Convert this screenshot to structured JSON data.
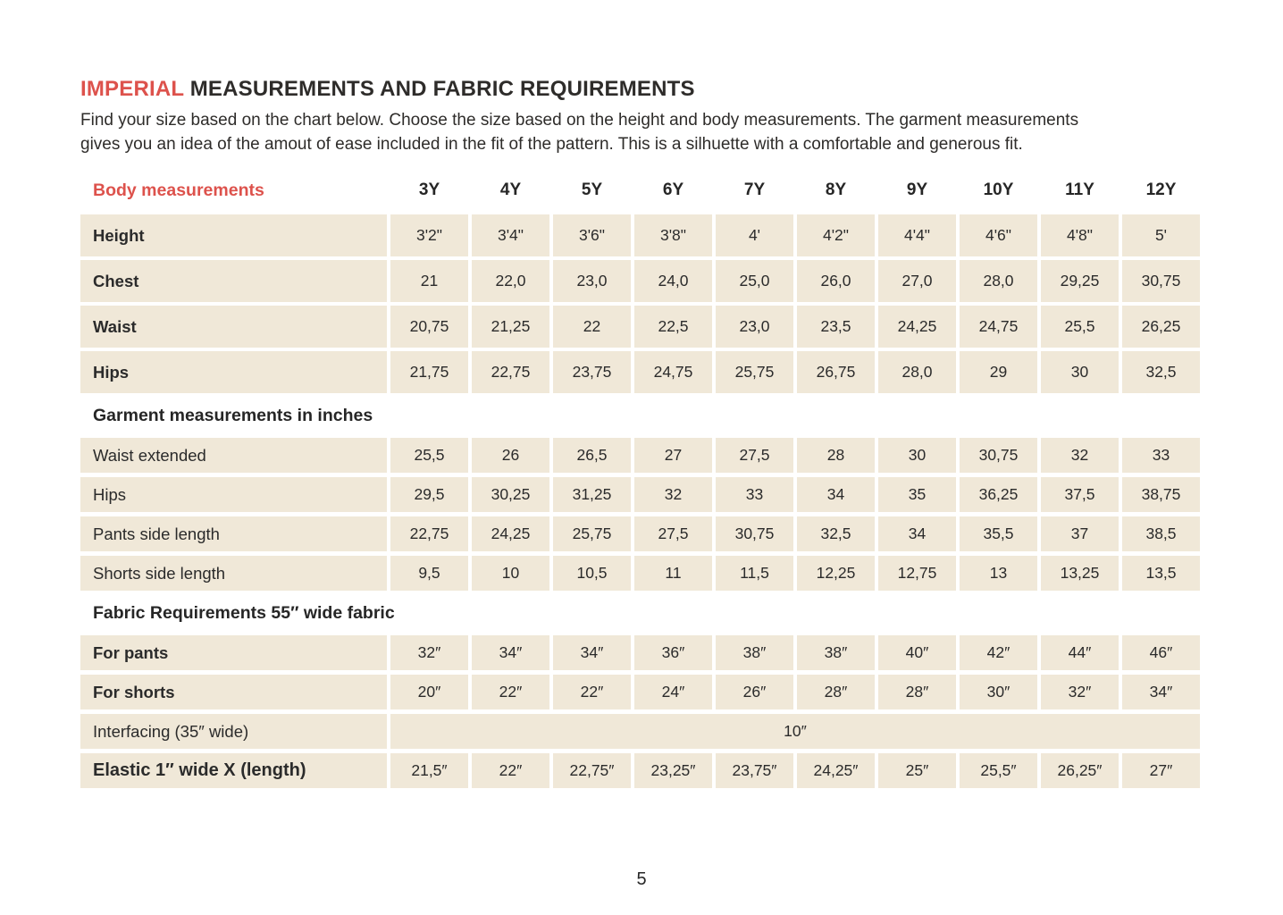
{
  "header": {
    "title_accent": "IMPERIAL",
    "title_rest": " MEASUREMENTS AND FABRIC REQUIREMENTS",
    "intro_line1": "Find your size based on the chart below. Choose the size based on the height and body measurements. The garment measurements",
    "intro_line2": "gives you an idea of the amout of ease included in the fit of the pattern. This is a silhuette with a comfortable and generous fit."
  },
  "colors": {
    "accent_red": "#dd524c",
    "cell_background": "#f0e8d8",
    "text": "#2b2b2b"
  },
  "table": {
    "header_row": {
      "label": "Body measurements",
      "sizes": [
        "3Y",
        "4Y",
        "5Y",
        "6Y",
        "7Y",
        "8Y",
        "9Y",
        "10Y",
        "11Y",
        "12Y"
      ]
    },
    "sections": [
      {
        "rows": [
          {
            "label": "Height",
            "bold": true,
            "values": [
              "3'2\"",
              "3'4\"",
              "3'6\"",
              "3'8\"",
              "4'",
              "4'2\"",
              "4'4\"",
              "4'6\"",
              "4'8\"",
              "5'"
            ]
          },
          {
            "label": "Chest",
            "bold": true,
            "values": [
              "21",
              "22,0",
              "23,0",
              "24,0",
              "25,0",
              "26,0",
              "27,0",
              "28,0",
              "29,25",
              "30,75"
            ]
          },
          {
            "label": "Waist",
            "bold": true,
            "values": [
              "20,75",
              "21,25",
              "22",
              "22,5",
              "23,0",
              "23,5",
              "24,25",
              "24,75",
              "25,5",
              "26,25"
            ]
          },
          {
            "label": "Hips",
            "bold": true,
            "values": [
              "21,75",
              "22,75",
              "23,75",
              "24,75",
              "25,75",
              "26,75",
              "28,0",
              "29",
              "30",
              "32,5"
            ]
          }
        ]
      },
      {
        "title": "Garment measurements in inches",
        "rows": [
          {
            "label": "Waist extended",
            "bold": false,
            "values": [
              "25,5",
              "26",
              "26,5",
              "27",
              "27,5",
              "28",
              "30",
              "30,75",
              "32",
              "33"
            ]
          },
          {
            "label": "Hips",
            "bold": false,
            "values": [
              "29,5",
              "30,25",
              "31,25",
              "32",
              "33",
              "34",
              "35",
              "36,25",
              "37,5",
              "38,75"
            ]
          },
          {
            "label": "Pants side length",
            "bold": false,
            "values": [
              "22,75",
              "24,25",
              "25,75",
              "27,5",
              "30,75",
              "32,5",
              "34",
              "35,5",
              "37",
              "38,5"
            ]
          },
          {
            "label": "Shorts side length",
            "bold": false,
            "values": [
              "9,5",
              "10",
              "10,5",
              "11",
              "11,5",
              "12,25",
              "12,75",
              "13",
              "13,25",
              "13,5"
            ]
          }
        ]
      },
      {
        "title": "Fabric Requirements 55″ wide fabric",
        "rows": [
          {
            "label": "For pants",
            "bold": true,
            "values": [
              "32″",
              "34″",
              "34″",
              "36″",
              "38″",
              "38″",
              "40″",
              "42″",
              "44″",
              "46″"
            ]
          },
          {
            "label": "For shorts",
            "bold": true,
            "values": [
              "20″",
              "22″",
              "22″",
              "24″",
              "26″",
              "28″",
              "28″",
              "30″",
              "32″",
              "34″"
            ]
          },
          {
            "label": "Interfacing (35″ wide)",
            "bold": false,
            "merged_value": "10″"
          },
          {
            "label": "Elastic 1″ wide X (length)",
            "bold": true,
            "big": true,
            "values": [
              "21,5″",
              "22″",
              "22,75″",
              "23,25″",
              "23,75″",
              "24,25″",
              "25″",
              "25,5″",
              "26,25″",
              "27″"
            ]
          }
        ]
      }
    ]
  },
  "footer": {
    "page_number": "5"
  }
}
